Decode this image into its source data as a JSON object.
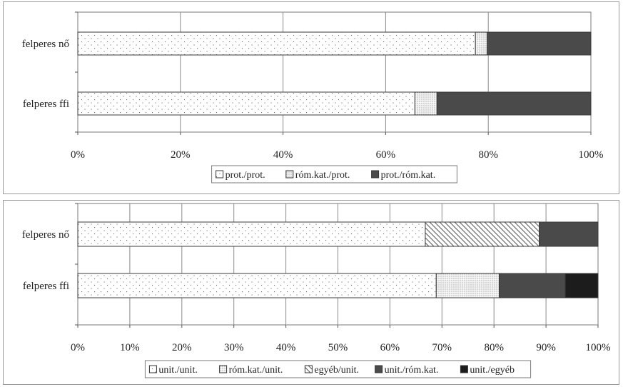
{
  "chart_data": [
    {
      "type": "bar",
      "orientation": "horizontal",
      "stacked": "percent",
      "categories": [
        "felperes nő",
        "felperes ffi"
      ],
      "series": [
        {
          "name": "prot./prot.",
          "values": [
            77.5,
            65.7
          ],
          "pattern": "sparse-dots"
        },
        {
          "name": "róm.kat./prot.",
          "values": [
            2.3,
            4.3
          ],
          "pattern": "dense-dots"
        },
        {
          "name": "prot./róm.kat.",
          "values": [
            20.2,
            30.0
          ],
          "pattern": "dark"
        }
      ],
      "xlim": [
        0,
        100
      ],
      "x_ticks": [
        "0%",
        "20%",
        "40%",
        "60%",
        "80%",
        "100%"
      ],
      "grid": true,
      "legend": "bottom",
      "title": "",
      "xlabel": "",
      "ylabel": ""
    },
    {
      "type": "bar",
      "orientation": "horizontal",
      "stacked": "percent",
      "categories": [
        "felperes nő",
        "felperes ffi"
      ],
      "series": [
        {
          "name": "unit./unit.",
          "values": [
            66.8,
            68.9
          ],
          "pattern": "sparse-dots"
        },
        {
          "name": "róm.kat./unit.",
          "values": [
            0,
            12.1
          ],
          "pattern": "dense-dots"
        },
        {
          "name": "egyéb/unit.",
          "values": [
            21.9,
            0
          ],
          "pattern": "diagonal"
        },
        {
          "name": "unit./róm.kat.",
          "values": [
            11.3,
            12.7
          ],
          "pattern": "dark"
        },
        {
          "name": "unit./egyéb",
          "values": [
            0,
            6.3
          ],
          "pattern": "black"
        }
      ],
      "xlim": [
        0,
        100
      ],
      "x_ticks": [
        "0%",
        "10%",
        "20%",
        "30%",
        "40%",
        "50%",
        "60%",
        "70%",
        "80%",
        "90%",
        "100%"
      ],
      "grid": true,
      "legend": "bottom",
      "title": "",
      "xlabel": "",
      "ylabel": ""
    }
  ]
}
